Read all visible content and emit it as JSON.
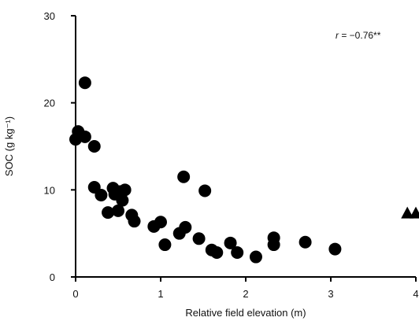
{
  "chart_data": {
    "type": "scatter",
    "xlabel": "Relative field elevation (m)",
    "ylabel": "SOC (g kg⁻¹)",
    "xlim": [
      0,
      4
    ],
    "ylim": [
      0,
      30
    ],
    "x_ticks": [
      "0",
      "1",
      "2",
      "3",
      "4"
    ],
    "y_ticks": [
      "0",
      "10",
      "20",
      "30"
    ],
    "annotation": {
      "r_symbol": "r",
      "r_value": " = −0.76**"
    },
    "series": [
      {
        "marker": "circle",
        "color": "#000000",
        "points": [
          [
            0.0,
            15.8
          ],
          [
            0.03,
            16.7
          ],
          [
            0.11,
            16.1
          ],
          [
            0.11,
            22.3
          ],
          [
            0.22,
            15.0
          ],
          [
            0.22,
            10.3
          ],
          [
            0.3,
            9.4
          ],
          [
            0.38,
            7.4
          ],
          [
            0.44,
            10.2
          ],
          [
            0.46,
            9.5
          ],
          [
            0.5,
            7.6
          ],
          [
            0.52,
            9.8
          ],
          [
            0.55,
            8.8
          ],
          [
            0.58,
            10.0
          ],
          [
            0.66,
            7.1
          ],
          [
            0.69,
            6.4
          ],
          [
            0.92,
            5.8
          ],
          [
            1.0,
            6.3
          ],
          [
            1.05,
            3.7
          ],
          [
            1.22,
            5.0
          ],
          [
            1.27,
            11.5
          ],
          [
            1.29,
            5.7
          ],
          [
            1.45,
            4.4
          ],
          [
            1.52,
            9.9
          ],
          [
            1.6,
            3.1
          ],
          [
            1.66,
            2.8
          ],
          [
            1.82,
            3.9
          ],
          [
            1.9,
            2.8
          ],
          [
            2.12,
            2.3
          ],
          [
            2.33,
            4.5
          ],
          [
            2.33,
            3.7
          ],
          [
            2.7,
            4.0
          ],
          [
            3.05,
            3.2
          ]
        ]
      },
      {
        "marker": "triangle",
        "color": "#000000",
        "points": [
          [
            3.9,
            7.4
          ],
          [
            4.0,
            7.4
          ]
        ]
      }
    ]
  }
}
